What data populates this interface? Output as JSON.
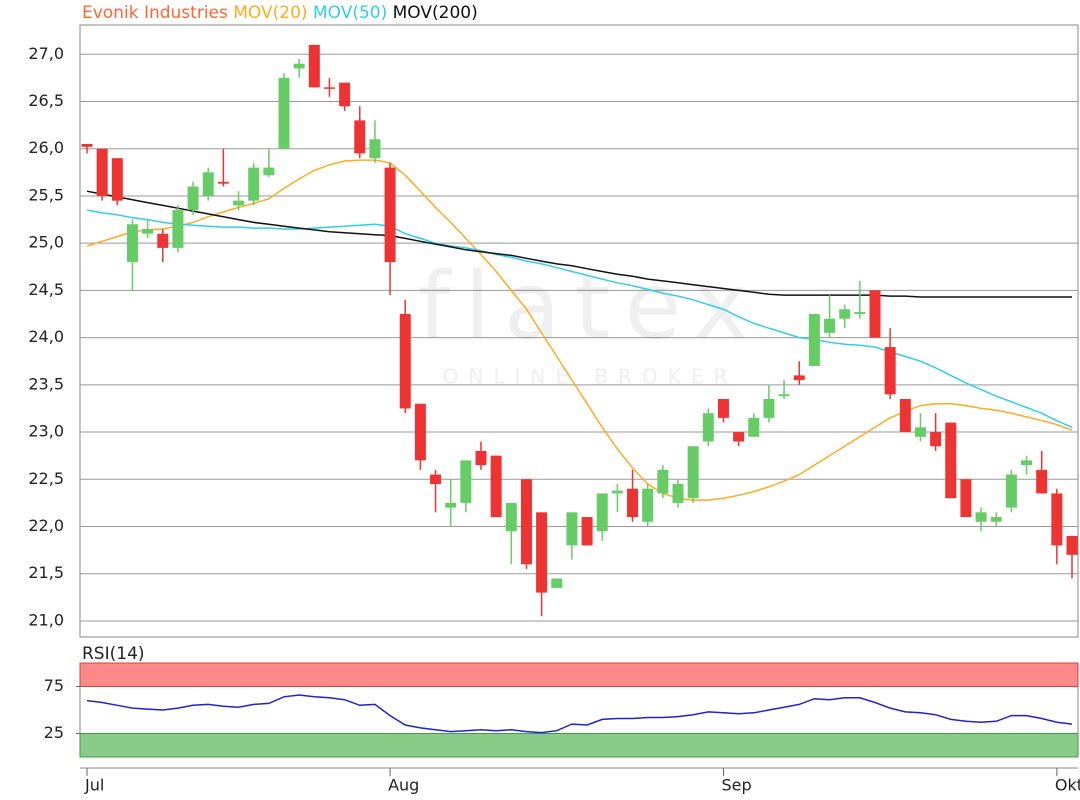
{
  "chart_data": [
    {
      "type": "candlestick",
      "title": "Evonik Industries",
      "title_color": "#ff6633",
      "watermark": {
        "logo": "flatex",
        "tagline": "ONLINE BROKER"
      },
      "categories": [
        "Jul",
        null,
        null,
        null,
        null,
        null,
        null,
        null,
        null,
        null,
        null,
        null,
        null,
        null,
        null,
        null,
        null,
        null,
        null,
        null,
        "Aug",
        null,
        null,
        null,
        null,
        null,
        null,
        null,
        null,
        null,
        null,
        null,
        null,
        null,
        null,
        null,
        null,
        null,
        null,
        null,
        null,
        null,
        "Sep",
        null,
        null,
        null,
        null,
        null,
        null,
        null,
        null,
        null,
        null,
        null,
        null,
        null,
        null,
        null,
        null,
        null,
        null,
        null,
        null,
        null,
        "Okt",
        null
      ],
      "open": [
        26.05,
        26.0,
        25.9,
        24.8,
        25.1,
        25.1,
        24.95,
        25.35,
        25.5,
        25.65,
        25.4,
        25.45,
        25.72,
        26.0,
        26.85,
        27.1,
        26.65,
        26.7,
        26.3,
        25.9,
        25.8,
        24.25,
        23.3,
        22.55,
        22.2,
        22.25,
        22.8,
        22.75,
        21.95,
        22.5,
        22.15,
        21.35,
        21.8,
        22.1,
        21.95,
        22.35,
        22.4,
        22.05,
        22.35,
        22.25,
        22.3,
        22.9,
        23.35,
        23.0,
        22.95,
        23.15,
        23.38,
        23.6,
        23.7,
        24.05,
        24.2,
        24.25,
        24.5,
        23.9,
        23.35,
        22.95,
        23.0,
        23.1,
        22.5,
        22.05,
        22.05,
        22.2,
        22.65,
        22.6,
        22.35,
        21.9
      ],
      "high": [
        26.05,
        26.0,
        25.9,
        25.25,
        25.25,
        25.15,
        25.4,
        25.65,
        25.8,
        26.0,
        25.55,
        25.85,
        26.0,
        26.8,
        26.95,
        27.1,
        26.75,
        26.7,
        26.45,
        26.3,
        25.85,
        24.4,
        23.3,
        22.6,
        22.5,
        22.7,
        22.9,
        22.75,
        22.25,
        22.5,
        22.15,
        21.45,
        22.15,
        22.1,
        22.35,
        22.45,
        22.6,
        22.45,
        22.65,
        22.5,
        22.85,
        23.25,
        23.35,
        23.0,
        23.2,
        23.5,
        23.55,
        23.75,
        24.25,
        24.45,
        24.35,
        24.6,
        24.5,
        24.1,
        23.35,
        23.2,
        23.2,
        23.1,
        22.5,
        22.2,
        22.15,
        22.6,
        22.75,
        22.8,
        22.4,
        21.9
      ],
      "low": [
        25.95,
        25.45,
        25.4,
        24.5,
        25.05,
        24.8,
        24.9,
        25.3,
        25.45,
        25.6,
        25.35,
        25.4,
        25.7,
        26.0,
        26.75,
        26.65,
        26.55,
        26.4,
        25.9,
        25.85,
        24.45,
        23.2,
        22.6,
        22.15,
        22.0,
        22.15,
        22.6,
        22.1,
        21.6,
        21.55,
        21.05,
        21.35,
        21.65,
        21.8,
        21.85,
        22.15,
        22.05,
        22.0,
        22.3,
        22.2,
        22.25,
        22.85,
        23.1,
        22.85,
        22.95,
        23.1,
        23.35,
        23.5,
        23.7,
        24.0,
        24.1,
        24.2,
        24.0,
        23.35,
        23.0,
        22.9,
        22.8,
        22.3,
        22.1,
        21.95,
        22.0,
        22.15,
        22.55,
        22.35,
        21.6,
        21.45
      ],
      "close": [
        26.02,
        25.5,
        25.45,
        25.2,
        25.15,
        24.95,
        25.35,
        25.6,
        25.75,
        25.63,
        25.45,
        25.8,
        25.8,
        26.75,
        26.9,
        26.65,
        26.64,
        26.45,
        25.95,
        26.1,
        24.8,
        23.25,
        22.7,
        22.45,
        22.25,
        22.7,
        22.65,
        22.1,
        22.25,
        21.6,
        21.3,
        21.45,
        22.15,
        21.8,
        22.35,
        22.38,
        22.1,
        22.4,
        22.6,
        22.45,
        22.85,
        23.2,
        23.15,
        22.9,
        23.15,
        23.35,
        23.4,
        23.55,
        24.25,
        24.2,
        24.3,
        24.27,
        24.0,
        23.4,
        23.0,
        23.05,
        22.85,
        22.3,
        22.1,
        22.15,
        22.1,
        22.55,
        22.7,
        22.35,
        21.8,
        21.7
      ],
      "up_color": "#66cc66",
      "down_color": "#ee3333",
      "series": [
        {
          "name": "MOV(20)",
          "color": "#ffaa22",
          "values": [
            24.97,
            25.02,
            25.07,
            25.12,
            25.14,
            25.15,
            25.18,
            25.22,
            25.28,
            25.33,
            25.38,
            25.42,
            25.47,
            25.58,
            25.68,
            25.77,
            25.83,
            25.87,
            25.88,
            25.88,
            25.85,
            25.72,
            25.55,
            25.38,
            25.22,
            25.05,
            24.88,
            24.7,
            24.5,
            24.3,
            24.05,
            23.8,
            23.55,
            23.3,
            23.05,
            22.82,
            22.62,
            22.45,
            22.35,
            22.3,
            22.28,
            22.28,
            22.3,
            22.33,
            22.37,
            22.42,
            22.48,
            22.55,
            22.65,
            22.75,
            22.85,
            22.95,
            23.05,
            23.15,
            23.22,
            23.28,
            23.3,
            23.3,
            23.28,
            23.25,
            23.23,
            23.2,
            23.16,
            23.12,
            23.08,
            23.02
          ]
        },
        {
          "name": "MOV(50)",
          "color": "#33ccee",
          "values": [
            25.35,
            25.32,
            25.3,
            25.27,
            25.25,
            25.22,
            25.2,
            25.19,
            25.18,
            25.17,
            25.17,
            25.16,
            25.16,
            25.15,
            25.15,
            25.16,
            25.17,
            25.18,
            25.19,
            25.2,
            25.18,
            25.1,
            25.05,
            25.0,
            24.97,
            24.95,
            24.92,
            24.88,
            24.85,
            24.81,
            24.78,
            24.74,
            24.7,
            24.66,
            24.62,
            24.58,
            24.55,
            24.51,
            24.47,
            24.44,
            24.4,
            24.35,
            24.3,
            24.22,
            24.15,
            24.1,
            24.05,
            24.0,
            23.98,
            23.95,
            23.93,
            23.92,
            23.9,
            23.85,
            23.8,
            23.75,
            23.68,
            23.6,
            23.52,
            23.45,
            23.38,
            23.32,
            23.26,
            23.2,
            23.12,
            23.05
          ]
        },
        {
          "name": "MOV(200)",
          "color": "#111111",
          "values": [
            25.55,
            25.52,
            25.49,
            25.46,
            25.43,
            25.4,
            25.37,
            25.34,
            25.31,
            25.28,
            25.25,
            25.22,
            25.2,
            25.18,
            25.16,
            25.14,
            25.12,
            25.11,
            25.1,
            25.09,
            25.08,
            25.05,
            25.02,
            24.99,
            24.96,
            24.93,
            24.91,
            24.89,
            24.87,
            24.84,
            24.81,
            24.78,
            24.76,
            24.73,
            24.7,
            24.67,
            24.65,
            24.62,
            24.6,
            24.58,
            24.56,
            24.54,
            24.52,
            24.5,
            24.48,
            24.46,
            24.45,
            24.45,
            24.45,
            24.45,
            24.45,
            24.45,
            24.45,
            24.44,
            24.44,
            24.43,
            24.43,
            24.43,
            24.43,
            24.43,
            24.43,
            24.43,
            24.43,
            24.43,
            24.43,
            24.43
          ]
        }
      ],
      "ylim": [
        20.83,
        27.31
      ],
      "yticks": [
        {
          "value": 21,
          "label": "21,0"
        },
        {
          "value": 21.5,
          "label": "21,5"
        },
        {
          "value": 22,
          "label": "22,0"
        },
        {
          "value": 22.5,
          "label": "22,5"
        },
        {
          "value": 23,
          "label": "23,0"
        },
        {
          "value": 23.5,
          "label": "23,5"
        },
        {
          "value": 24,
          "label": "24,0"
        },
        {
          "value": 24.5,
          "label": "24,5"
        },
        {
          "value": 25,
          "label": "25,0"
        },
        {
          "value": 25.5,
          "label": "25,5"
        },
        {
          "value": 26,
          "label": "26,0"
        },
        {
          "value": 26.5,
          "label": "26,5"
        },
        {
          "value": 27,
          "label": "27,0"
        }
      ],
      "grid": true
    },
    {
      "type": "line",
      "title": "RSI(14)",
      "title_color": "#2222cc",
      "upper_band_color": "#ff8888",
      "lower_band_color": "#88cc88",
      "series": [
        {
          "color": "#2222cc",
          "values": [
            60,
            58,
            55,
            52,
            51,
            50,
            52,
            55,
            56,
            54,
            53,
            56,
            57,
            64,
            66,
            64,
            63,
            61,
            55,
            56,
            44,
            34,
            31,
            29,
            27,
            28,
            29,
            28,
            29,
            27,
            26,
            28,
            35,
            34,
            40,
            41,
            41,
            42,
            42,
            43,
            45,
            48,
            47,
            46,
            47,
            50,
            53,
            56,
            62,
            61,
            63,
            63,
            58,
            52,
            48,
            47,
            45,
            40,
            38,
            37,
            38,
            44,
            44,
            41,
            37,
            35
          ]
        }
      ],
      "ylim": [
        0,
        100
      ],
      "yticks": [
        25,
        75
      ]
    }
  ]
}
